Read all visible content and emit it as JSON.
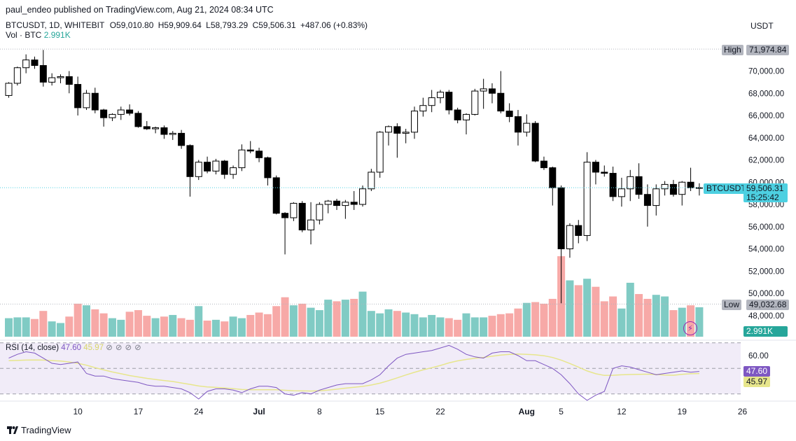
{
  "header": {
    "published": "paul_endeo published on TradingView.com, Aug 21, 2024 08:34 UTC",
    "symbol": "BTCUSDT, 1D, WHITEBIT",
    "open": "O59,010.80",
    "high": "H59,909.64",
    "low": "L58,793.29",
    "close": "C59,506.31",
    "change": "+487.06 (+0.83%)",
    "vol_label": "Vol · BTC",
    "vol_value": "2.991K",
    "currency": "USDT"
  },
  "badges": {
    "high_label": "High",
    "high_value": "71,974.84",
    "low_label": "Low",
    "low_value": "49,032.68",
    "symbol_tag": "BTCUSDT",
    "price_tag": "59,506.31",
    "countdown": "15:25:42",
    "vol_tag": "2.991K",
    "rsi_tag": "47.60",
    "rsi_ma_tag": "45.97"
  },
  "rsi_header": {
    "label": "RSI (14, close)",
    "value": "47.60",
    "ma_value": "45.97",
    "icons": [
      "eye-icon",
      "gear-icon",
      "close-icon",
      "more-icon"
    ]
  },
  "footer": {
    "brand": "TradingView"
  },
  "colors": {
    "up": "#26a69a",
    "down": "#ef5350",
    "rsi": "#7e57c2",
    "rsi_ma": "#e7e68c",
    "price_tag": "#4dd0e1"
  },
  "chart_data": {
    "type": "candlestick",
    "title": "BTCUSDT, 1D, WHITEBIT",
    "price_axis": {
      "min": 47000,
      "max": 73000,
      "ticks": [
        48000,
        50000,
        52000,
        54000,
        56000,
        58000,
        60000,
        62000,
        64000,
        66000,
        68000,
        70000
      ],
      "tick_labels": [
        "48,000.00",
        "50,000.00",
        "52,000.00",
        "54,000.00",
        "56,000.00",
        "58,000.00",
        "60,000.00",
        "62,000.00",
        "64,000.00",
        "66,000.00",
        "68,000.00",
        "70,000.00"
      ]
    },
    "x_ticks": [
      {
        "label": "10",
        "index": 8
      },
      {
        "label": "17",
        "index": 15
      },
      {
        "label": "24",
        "index": 22
      },
      {
        "label": "Jul",
        "index": 29
      },
      {
        "label": "8",
        "index": 36
      },
      {
        "label": "15",
        "index": 43
      },
      {
        "label": "22",
        "index": 50
      },
      {
        "label": "Aug",
        "index": 60
      },
      {
        "label": "5",
        "index": 64
      },
      {
        "label": "12",
        "index": 71
      },
      {
        "label": "19",
        "index": 78
      },
      {
        "label": "26",
        "index": 85
      }
    ],
    "high_line": 71974.84,
    "low_line": 49032.68,
    "last_price": 59506.31,
    "candles": [
      [
        67800,
        69000,
        67600,
        68900
      ],
      [
        68900,
        70400,
        68700,
        70300
      ],
      [
        70300,
        71500,
        69800,
        71000
      ],
      [
        71000,
        71300,
        70200,
        70500
      ],
      [
        70500,
        71900,
        68600,
        69000
      ],
      [
        69000,
        69800,
        68700,
        69400
      ],
      [
        69400,
        69700,
        68900,
        69500
      ],
      [
        69500,
        70000,
        68000,
        68800
      ],
      [
        68800,
        69500,
        66000,
        66700
      ],
      [
        66700,
        68300,
        66500,
        68000
      ],
      [
        68000,
        68500,
        66200,
        66500
      ],
      [
        66500,
        66600,
        65000,
        65800
      ],
      [
        65800,
        66200,
        65500,
        66100
      ],
      [
        66100,
        66800,
        65600,
        66500
      ],
      [
        66500,
        67000,
        66000,
        66200
      ],
      [
        66200,
        66400,
        64900,
        65000
      ],
      [
        65000,
        65500,
        64700,
        64800
      ],
      [
        64800,
        65000,
        64400,
        64900
      ],
      [
        64900,
        65100,
        63900,
        64300
      ],
      [
        64300,
        64600,
        63800,
        64400
      ],
      [
        64400,
        64700,
        63000,
        63300
      ],
      [
        63300,
        63400,
        58700,
        60500
      ],
      [
        60500,
        62000,
        60200,
        61800
      ],
      [
        61800,
        62300,
        60800,
        61000
      ],
      [
        61000,
        62100,
        60700,
        61900
      ],
      [
        61900,
        62000,
        60300,
        60700
      ],
      [
        60700,
        61500,
        60300,
        61300
      ],
      [
        61300,
        63400,
        61000,
        62900
      ],
      [
        62900,
        63700,
        62600,
        62800
      ],
      [
        62800,
        63100,
        61800,
        62200
      ],
      [
        62200,
        62300,
        59700,
        60400
      ],
      [
        60400,
        60600,
        57100,
        57200
      ],
      [
        57200,
        57300,
        53500,
        56800
      ],
      [
        56800,
        58200,
        56500,
        58100
      ],
      [
        58100,
        58300,
        55500,
        55700
      ],
      [
        55700,
        58200,
        54400,
        56600
      ],
      [
        56600,
        58200,
        56200,
        58000
      ],
      [
        58000,
        58400,
        57200,
        58300
      ],
      [
        58300,
        58500,
        57500,
        57900
      ],
      [
        57900,
        58400,
        56700,
        58200
      ],
      [
        58200,
        59200,
        57500,
        58000
      ],
      [
        58000,
        59700,
        57800,
        59400
      ],
      [
        59400,
        61200,
        59200,
        60900
      ],
      [
        60900,
        64600,
        60400,
        64500
      ],
      [
        64500,
        65100,
        63300,
        65000
      ],
      [
        65000,
        65300,
        62200,
        64400
      ],
      [
        64400,
        64800,
        63500,
        64500
      ],
      [
        64500,
        66800,
        63900,
        66400
      ],
      [
        66400,
        67600,
        65900,
        66900
      ],
      [
        66900,
        68300,
        66300,
        67600
      ],
      [
        67600,
        68300,
        67100,
        68100
      ],
      [
        68100,
        68300,
        66100,
        66500
      ],
      [
        66500,
        66700,
        65300,
        65600
      ],
      [
        65600,
        66200,
        64300,
        66100
      ],
      [
        66100,
        68400,
        66000,
        68200
      ],
      [
        68200,
        69300,
        66600,
        68400
      ],
      [
        68400,
        68900,
        67100,
        68000
      ],
      [
        68000,
        70000,
        66200,
        66400
      ],
      [
        66400,
        67100,
        65400,
        65900
      ],
      [
        65900,
        66500,
        63300,
        64500
      ],
      [
        64500,
        66100,
        64100,
        65300
      ],
      [
        65300,
        65500,
        61800,
        61900
      ],
      [
        61900,
        62300,
        61100,
        61300
      ],
      [
        61300,
        61400,
        57900,
        59500
      ],
      [
        59500,
        59700,
        49100,
        54000
      ],
      [
        54000,
        56300,
        53200,
        56100
      ],
      [
        56100,
        56600,
        54500,
        55200
      ],
      [
        55200,
        62700,
        54700,
        61800
      ],
      [
        61800,
        62000,
        59800,
        60900
      ],
      [
        60900,
        61500,
        60500,
        60800
      ],
      [
        60800,
        61400,
        58300,
        58700
      ],
      [
        58700,
        60400,
        57800,
        59400
      ],
      [
        59400,
        61100,
        58300,
        60500
      ],
      [
        60500,
        61700,
        58500,
        58900
      ],
      [
        58900,
        59800,
        56000,
        57900
      ],
      [
        57900,
        59800,
        57000,
        59400
      ],
      [
        59400,
        60100,
        58800,
        59800
      ],
      [
        59800,
        60200,
        58700,
        58900
      ],
      [
        58900,
        60100,
        57900,
        60000
      ],
      [
        60000,
        61300,
        59200,
        59500
      ],
      [
        59500,
        59900,
        58800,
        59506
      ]
    ],
    "volume_axis_max": 10000,
    "volumes": [
      2300,
      2400,
      2400,
      2200,
      3200,
      1900,
      1700,
      2500,
      4100,
      3900,
      3400,
      2900,
      2300,
      2100,
      3100,
      3300,
      2600,
      2300,
      2500,
      2700,
      2300,
      2100,
      3800,
      2000,
      2100,
      1900,
      2500,
      2300,
      2700,
      3000,
      2800,
      3800,
      4900,
      3900,
      4100,
      3600,
      3300,
      4600,
      4400,
      4600,
      4700,
      5600,
      3200,
      2900,
      3400,
      3200,
      3000,
      2800,
      2400,
      2700,
      2400,
      2300,
      2100,
      2900,
      2400,
      2400,
      2600,
      2800,
      2900,
      3500,
      4200,
      4300,
      4100,
      4700,
      10000,
      7000,
      6400,
      7200,
      6200,
      4400,
      5000,
      3500,
      6700,
      5300,
      4700,
      5200,
      5000,
      3300,
      3600,
      3900,
      3660
    ],
    "rsi": {
      "label": "RSI (14, close)",
      "axis_ticks": [
        60,
        40
      ],
      "upper_band": 70,
      "middle_band": 50,
      "lower_band": 30,
      "values": [
        58,
        61,
        63,
        62,
        58,
        54,
        53,
        54,
        55,
        46,
        44,
        44,
        42,
        41,
        40,
        39,
        37,
        36,
        36,
        35,
        34,
        31,
        26,
        32,
        34,
        34,
        33,
        31,
        34,
        36,
        36,
        35,
        30,
        29,
        31,
        30,
        33,
        35,
        37,
        38,
        38,
        38,
        41,
        45,
        52,
        58,
        61,
        62,
        63,
        64,
        66,
        68,
        65,
        61,
        59,
        58,
        62,
        63,
        63,
        60,
        56,
        56,
        53,
        50,
        45,
        38,
        30,
        25,
        29,
        32,
        50,
        52,
        51,
        49,
        47,
        45,
        46,
        47,
        48,
        47,
        47.6
      ],
      "ma_values": [
        56,
        56.2,
        56.5,
        56.6,
        56.5,
        56.1,
        55.7,
        55,
        54,
        52.5,
        50.6,
        48.8,
        47.2,
        45.8,
        44.4,
        43.3,
        42.2,
        41.3,
        40.5,
        39.7,
        38.6,
        37.5,
        36.2,
        35.5,
        35.1,
        34.7,
        34.1,
        33.5,
        33.3,
        33.3,
        33.3,
        33.3,
        32.9,
        32.5,
        32.4,
        32.3,
        32.5,
        33,
        33.7,
        34.5,
        35.2,
        35.9,
        37,
        38.4,
        40.4,
        42.6,
        44.8,
        46.9,
        48.8,
        50.5,
        52.3,
        54.3,
        55.9,
        57,
        57.9,
        58.6,
        59.5,
        60.4,
        61,
        61.2,
        61,
        60.6,
        59.9,
        58.5,
        56.5,
        53.8,
        51,
        48,
        45.8,
        44.5,
        44.6,
        45,
        45.2,
        45.3,
        45.5,
        45.2,
        44.8,
        44.6,
        45.3,
        45.8,
        45.97
      ]
    }
  }
}
